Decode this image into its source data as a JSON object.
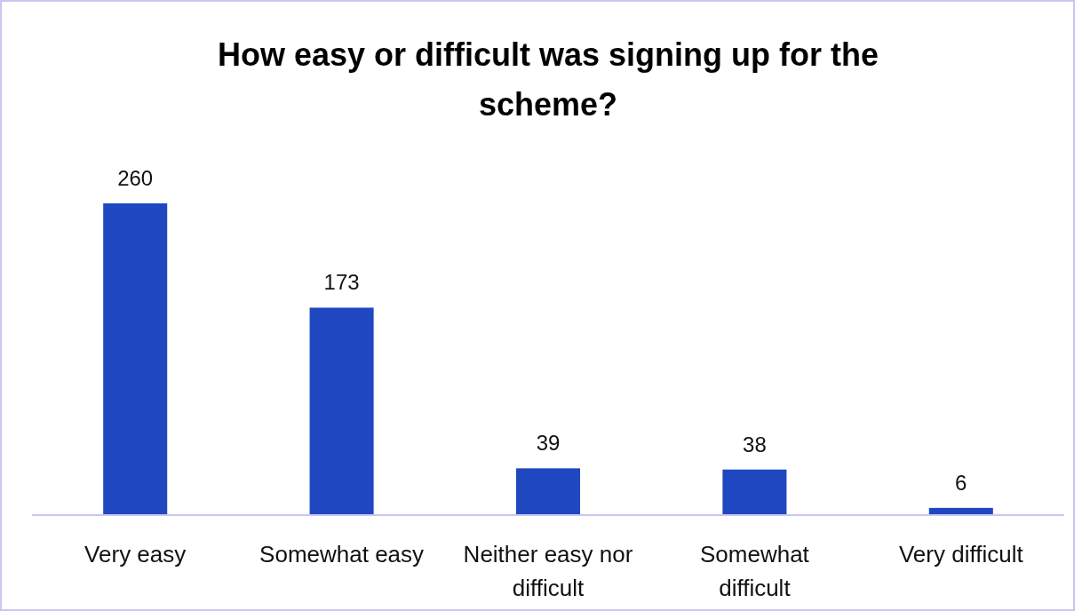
{
  "chart_data": {
    "type": "bar",
    "title": "How easy or difficult was signing up for the scheme?",
    "categories": [
      "Very easy",
      "Somewhat easy",
      "Neither easy nor difficult",
      "Somewhat difficult",
      "Very difficult"
    ],
    "values": [
      260,
      173,
      39,
      38,
      6
    ],
    "color": "#1f48c0",
    "data_labels": true
  }
}
